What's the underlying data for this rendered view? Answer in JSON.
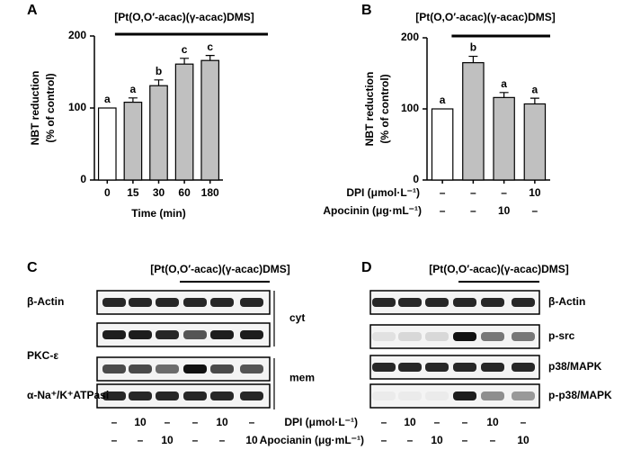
{
  "chart_data": [
    {
      "type": "bar",
      "panel": "A",
      "title": "[Pt(O,O′-acac)(γ-acac)DMS]",
      "ylabel": [
        "NBT reduction",
        "(% of control)"
      ],
      "xlabel": "Time (min)",
      "categories": [
        "0",
        "15",
        "30",
        "60",
        "180"
      ],
      "values": [
        100,
        108,
        131,
        161,
        166
      ],
      "errors": [
        null,
        6,
        8,
        8,
        7
      ],
      "letters": [
        "a",
        "a",
        "b",
        "c",
        "c"
      ],
      "colors": [
        "#ffffff",
        "#c0c0c0",
        "#c0c0c0",
        "#c0c0c0",
        "#c0c0c0"
      ],
      "ylim": [
        0,
        200
      ],
      "yticks": [
        0,
        100,
        200
      ]
    },
    {
      "type": "bar",
      "panel": "B",
      "title": "[Pt(O,O′-acac)(γ-acac)DMS]",
      "ylabel": [
        "NBT reduction",
        "(% of control)"
      ],
      "categories": [
        null,
        null,
        null,
        null
      ],
      "values": [
        100,
        165,
        116,
        107
      ],
      "errors": [
        null,
        9,
        7,
        8
      ],
      "letters": [
        "a",
        "b",
        "a",
        "a"
      ],
      "colors": [
        "#ffffff",
        "#c0c0c0",
        "#c0c0c0",
        "#c0c0c0"
      ],
      "ylim": [
        0,
        200
      ],
      "yticks": [
        0,
        100,
        200
      ],
      "conditions": [
        {
          "name": "DPI (μmol·L⁻¹)",
          "values": [
            "–",
            "–",
            "–",
            "10"
          ]
        },
        {
          "name": "Apocinin (μg·mL⁻¹)",
          "values": [
            "–",
            "–",
            "10",
            "–"
          ]
        }
      ]
    }
  ],
  "blots": [
    {
      "panel": "C",
      "title": "[Pt(O,O′-acac)(γ-acac)DMS]",
      "labels": [
        "β-Actin",
        "PKC-ε",
        "α-Na⁺/K⁺ATPasi"
      ],
      "groups": [
        "cyt",
        "mem"
      ],
      "conditions": [
        {
          "name": "DPI (μmol·L⁻¹)",
          "values": [
            "–",
            "10",
            "–",
            "–",
            "10",
            "–"
          ]
        },
        {
          "name": "Apocianin (μg·mL⁻¹)",
          "values": [
            "–",
            "–",
            "10",
            "–",
            "–",
            "10"
          ]
        }
      ]
    },
    {
      "panel": "D",
      "title": "[Pt(O,O′-acac)(γ-acac)DMS]",
      "labels": [
        "β-Actin",
        "p-src",
        "p38/MAPK",
        "p-p38/MAPK"
      ],
      "conditions": [
        {
          "name": "DPI (μmol·L⁻¹)",
          "values": [
            "–",
            "10",
            "–",
            "–",
            "10",
            "–"
          ]
        },
        {
          "name": "Apocianin (μg·mL⁻¹)",
          "values": [
            "–",
            "–",
            "10",
            "–",
            "–",
            "10"
          ]
        }
      ]
    }
  ]
}
